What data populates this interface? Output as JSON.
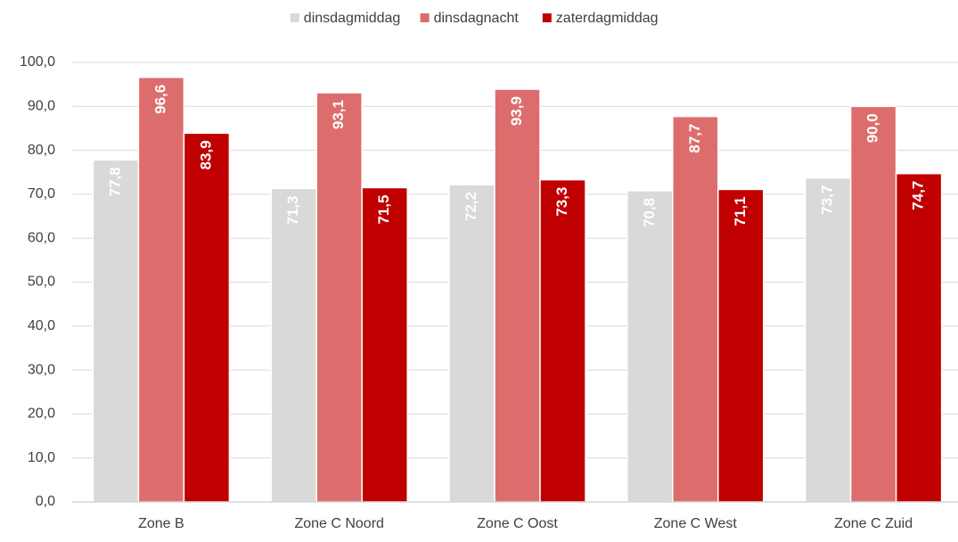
{
  "chart_data": {
    "type": "bar",
    "categories": [
      "Zone B",
      "Zone C Noord",
      "Zone C Oost",
      "Zone C West",
      "Zone C Zuid"
    ],
    "series": [
      {
        "name": "dinsdagmiddag",
        "color": "#d9d9d9",
        "values": [
          77.8,
          71.3,
          72.2,
          70.8,
          73.7
        ],
        "value_labels": [
          "77,8",
          "71,3",
          "72,2",
          "70,8",
          "73,7"
        ]
      },
      {
        "name": "dinsdagnacht",
        "color": "#dd6d6d",
        "values": [
          96.6,
          93.1,
          93.9,
          87.7,
          90.0
        ],
        "value_labels": [
          "96,6",
          "93,1",
          "93,9",
          "87,7",
          "90,0"
        ]
      },
      {
        "name": "zaterdagmiddag",
        "color": "#c00000",
        "values": [
          83.9,
          71.5,
          73.3,
          71.1,
          74.7
        ],
        "value_labels": [
          "83,9",
          "71,5",
          "73,3",
          "71,1",
          "74,7"
        ]
      }
    ],
    "ylim": [
      0,
      100
    ],
    "yticks": [
      {
        "value": 0,
        "label": "0,0"
      },
      {
        "value": 10,
        "label": "10,0"
      },
      {
        "value": 20,
        "label": "20,0"
      },
      {
        "value": 30,
        "label": "30,0"
      },
      {
        "value": 40,
        "label": "40,0"
      },
      {
        "value": 50,
        "label": "50,0"
      },
      {
        "value": 60,
        "label": "60,0"
      },
      {
        "value": 70,
        "label": "70,0"
      },
      {
        "value": 80,
        "label": "80,0"
      },
      {
        "value": 90,
        "label": "90,0"
      },
      {
        "value": 100,
        "label": "100,0"
      }
    ],
    "grid": true,
    "legend": "top"
  }
}
